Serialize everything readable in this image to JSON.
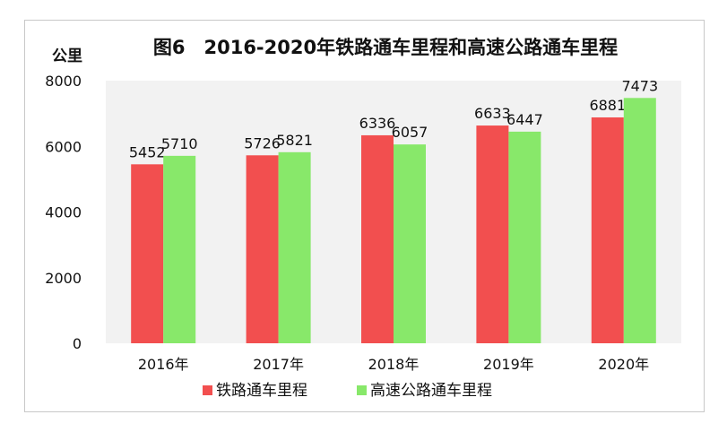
{
  "chart_data": {
    "type": "bar",
    "title": "图6　2016-2020年铁路通车里程和高速公路通车里程",
    "unit_label": "公里",
    "categories": [
      "2016年",
      "2017年",
      "2018年",
      "2019年",
      "2020年"
    ],
    "series": [
      {
        "name": "铁路通车里程",
        "color": "#f24f4f",
        "values": [
          5452,
          5726,
          6336,
          6633,
          6881
        ]
      },
      {
        "name": "高速公路通车里程",
        "color": "#88e86a",
        "values": [
          5710,
          5821,
          6057,
          6447,
          7473
        ]
      }
    ],
    "ylim": [
      0,
      8000
    ],
    "yticks": [
      0,
      2000,
      4000,
      6000,
      8000
    ],
    "grid": false,
    "plot_background": "#f2f2f2",
    "legend_position": "bottom"
  }
}
